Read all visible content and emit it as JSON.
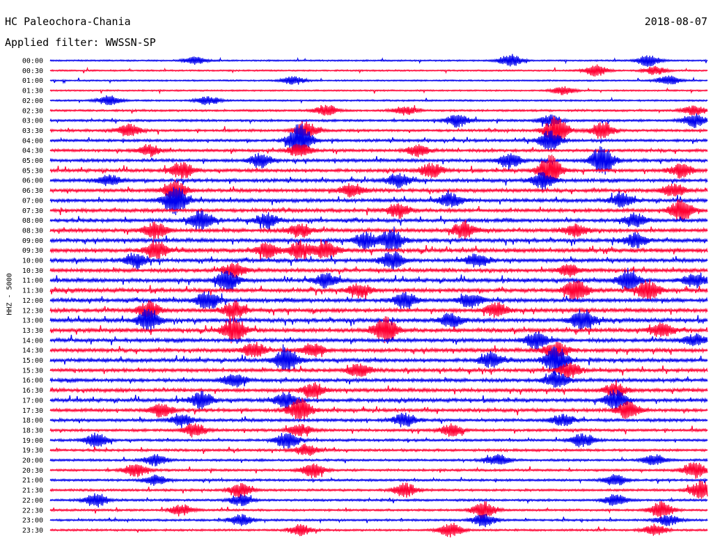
{
  "header": {
    "station": "HC Paleochora-Chania",
    "date": "2018-08-07",
    "filter": "Applied filter: WWSSN-SP",
    "channel": "HHZ - 5000"
  },
  "colors": {
    "trace_a": "#0000ee",
    "trace_b": "#ff0033"
  },
  "chart_data": {
    "type": "line",
    "title": "HC Paleochora-Chania",
    "subtitle": "Applied filter: WWSSN-SP",
    "ylabel": "HHZ - 5000",
    "rows": [
      {
        "time": "00:00",
        "color": "blue",
        "activity": 0.15,
        "events": [
          [
            0.22,
            5
          ],
          [
            0.7,
            9
          ],
          [
            0.91,
            8
          ]
        ]
      },
      {
        "time": "00:30",
        "color": "red",
        "activity": 0.15,
        "events": [
          [
            0.83,
            8
          ],
          [
            0.92,
            6
          ]
        ]
      },
      {
        "time": "01:00",
        "color": "blue",
        "activity": 0.15,
        "events": [
          [
            0.37,
            6
          ],
          [
            0.94,
            7
          ]
        ]
      },
      {
        "time": "01:30",
        "color": "red",
        "activity": 0.15,
        "events": [
          [
            0.78,
            6
          ]
        ]
      },
      {
        "time": "02:00",
        "color": "blue",
        "activity": 0.2,
        "events": [
          [
            0.09,
            7
          ],
          [
            0.24,
            6
          ]
        ]
      },
      {
        "time": "02:30",
        "color": "red",
        "activity": 0.3,
        "events": [
          [
            0.42,
            8
          ],
          [
            0.54,
            6
          ],
          [
            0.98,
            7
          ]
        ]
      },
      {
        "time": "03:00",
        "color": "blue",
        "activity": 0.35,
        "events": [
          [
            0.62,
            9
          ],
          [
            0.76,
            8
          ],
          [
            0.98,
            10
          ]
        ]
      },
      {
        "time": "03:30",
        "color": "red",
        "activity": 0.4,
        "events": [
          [
            0.12,
            9
          ],
          [
            0.39,
            12
          ],
          [
            0.77,
            22
          ],
          [
            0.84,
            12
          ]
        ]
      },
      {
        "time": "04:00",
        "color": "blue",
        "activity": 0.45,
        "events": [
          [
            0.38,
            24
          ],
          [
            0.76,
            14
          ]
        ]
      },
      {
        "time": "04:30",
        "color": "red",
        "activity": 0.5,
        "events": [
          [
            0.15,
            8
          ],
          [
            0.38,
            10
          ],
          [
            0.56,
            8
          ]
        ]
      },
      {
        "time": "05:00",
        "color": "blue",
        "activity": 0.55,
        "events": [
          [
            0.32,
            10
          ],
          [
            0.7,
            10
          ],
          [
            0.84,
            22
          ]
        ]
      },
      {
        "time": "05:30",
        "color": "red",
        "activity": 0.6,
        "events": [
          [
            0.2,
            12
          ],
          [
            0.58,
            10
          ],
          [
            0.76,
            22
          ],
          [
            0.96,
            10
          ]
        ]
      },
      {
        "time": "06:00",
        "color": "blue",
        "activity": 0.6,
        "events": [
          [
            0.09,
            8
          ],
          [
            0.53,
            10
          ],
          [
            0.75,
            12
          ]
        ]
      },
      {
        "time": "06:30",
        "color": "red",
        "activity": 0.65,
        "events": [
          [
            0.19,
            14
          ],
          [
            0.46,
            10
          ],
          [
            0.95,
            10
          ]
        ]
      },
      {
        "time": "07:00",
        "color": "blue",
        "activity": 0.65,
        "events": [
          [
            0.19,
            22
          ],
          [
            0.61,
            10
          ],
          [
            0.87,
            10
          ]
        ]
      },
      {
        "time": "07:30",
        "color": "red",
        "activity": 0.65,
        "events": [
          [
            0.53,
            10
          ],
          [
            0.96,
            16
          ]
        ]
      },
      {
        "time": "08:00",
        "color": "blue",
        "activity": 0.65,
        "events": [
          [
            0.23,
            14
          ],
          [
            0.33,
            10
          ],
          [
            0.89,
            10
          ]
        ]
      },
      {
        "time": "08:30",
        "color": "red",
        "activity": 0.7,
        "events": [
          [
            0.16,
            12
          ],
          [
            0.38,
            10
          ],
          [
            0.63,
            12
          ],
          [
            0.8,
            10
          ]
        ]
      },
      {
        "time": "09:00",
        "color": "blue",
        "activity": 0.7,
        "events": [
          [
            0.48,
            12
          ],
          [
            0.52,
            16
          ],
          [
            0.89,
            10
          ]
        ]
      },
      {
        "time": "09:30",
        "color": "red",
        "activity": 0.8,
        "events": [
          [
            0.16,
            12
          ],
          [
            0.33,
            10
          ],
          [
            0.38,
            12
          ],
          [
            0.42,
            12
          ]
        ]
      },
      {
        "time": "10:00",
        "color": "blue",
        "activity": 0.7,
        "events": [
          [
            0.13,
            10
          ],
          [
            0.52,
            12
          ],
          [
            0.65,
            10
          ]
        ]
      },
      {
        "time": "10:30",
        "color": "red",
        "activity": 0.7,
        "events": [
          [
            0.28,
            10
          ],
          [
            0.79,
            8
          ]
        ]
      },
      {
        "time": "11:00",
        "color": "blue",
        "activity": 0.75,
        "events": [
          [
            0.27,
            14
          ],
          [
            0.42,
            10
          ],
          [
            0.88,
            16
          ],
          [
            0.98,
            10
          ]
        ]
      },
      {
        "time": "11:30",
        "color": "red",
        "activity": 0.75,
        "events": [
          [
            0.47,
            10
          ],
          [
            0.8,
            16
          ],
          [
            0.91,
            14
          ]
        ]
      },
      {
        "time": "12:00",
        "color": "blue",
        "activity": 0.75,
        "events": [
          [
            0.24,
            14
          ],
          [
            0.54,
            12
          ],
          [
            0.64,
            10
          ]
        ]
      },
      {
        "time": "12:30",
        "color": "red",
        "activity": 0.75,
        "events": [
          [
            0.15,
            12
          ],
          [
            0.28,
            12
          ],
          [
            0.68,
            10
          ]
        ]
      },
      {
        "time": "13:00",
        "color": "blue",
        "activity": 0.75,
        "events": [
          [
            0.15,
            16
          ],
          [
            0.61,
            10
          ],
          [
            0.81,
            16
          ]
        ]
      },
      {
        "time": "13:30",
        "color": "red",
        "activity": 0.75,
        "events": [
          [
            0.28,
            18
          ],
          [
            0.51,
            20
          ],
          [
            0.93,
            10
          ]
        ]
      },
      {
        "time": "14:00",
        "color": "blue",
        "activity": 0.7,
        "events": [
          [
            0.74,
            12
          ],
          [
            0.98,
            8
          ]
        ]
      },
      {
        "time": "14:30",
        "color": "red",
        "activity": 0.7,
        "events": [
          [
            0.31,
            12
          ],
          [
            0.4,
            10
          ],
          [
            0.77,
            14
          ]
        ]
      },
      {
        "time": "15:00",
        "color": "blue",
        "activity": 0.7,
        "events": [
          [
            0.36,
            18
          ],
          [
            0.67,
            10
          ],
          [
            0.77,
            20
          ]
        ]
      },
      {
        "time": "15:30",
        "color": "red",
        "activity": 0.65,
        "events": [
          [
            0.47,
            10
          ],
          [
            0.79,
            10
          ]
        ]
      },
      {
        "time": "16:00",
        "color": "blue",
        "activity": 0.65,
        "events": [
          [
            0.28,
            10
          ],
          [
            0.77,
            12
          ]
        ]
      },
      {
        "time": "16:30",
        "color": "red",
        "activity": 0.65,
        "events": [
          [
            0.4,
            10
          ],
          [
            0.86,
            10
          ]
        ]
      },
      {
        "time": "17:00",
        "color": "blue",
        "activity": 0.65,
        "events": [
          [
            0.23,
            12
          ],
          [
            0.36,
            12
          ],
          [
            0.86,
            14
          ]
        ]
      },
      {
        "time": "17:30",
        "color": "red",
        "activity": 0.6,
        "events": [
          [
            0.17,
            10
          ],
          [
            0.38,
            16
          ],
          [
            0.88,
            12
          ]
        ]
      },
      {
        "time": "18:00",
        "color": "blue",
        "activity": 0.55,
        "events": [
          [
            0.2,
            8
          ],
          [
            0.54,
            10
          ],
          [
            0.78,
            8
          ]
        ]
      },
      {
        "time": "18:30",
        "color": "red",
        "activity": 0.45,
        "events": [
          [
            0.22,
            10
          ],
          [
            0.38,
            8
          ],
          [
            0.61,
            8
          ]
        ]
      },
      {
        "time": "19:00",
        "color": "blue",
        "activity": 0.4,
        "events": [
          [
            0.07,
            10
          ],
          [
            0.36,
            12
          ],
          [
            0.81,
            10
          ]
        ]
      },
      {
        "time": "19:30",
        "color": "red",
        "activity": 0.4,
        "events": [
          [
            0.39,
            8
          ]
        ]
      },
      {
        "time": "20:00",
        "color": "blue",
        "activity": 0.35,
        "events": [
          [
            0.16,
            8
          ],
          [
            0.68,
            8
          ],
          [
            0.92,
            8
          ]
        ]
      },
      {
        "time": "20:30",
        "color": "red",
        "activity": 0.35,
        "events": [
          [
            0.13,
            10
          ],
          [
            0.4,
            10
          ],
          [
            0.98,
            12
          ]
        ]
      },
      {
        "time": "21:00",
        "color": "blue",
        "activity": 0.35,
        "events": [
          [
            0.16,
            8
          ],
          [
            0.86,
            8
          ]
        ]
      },
      {
        "time": "21:30",
        "color": "red",
        "activity": 0.35,
        "events": [
          [
            0.29,
            10
          ],
          [
            0.54,
            10
          ],
          [
            0.99,
            14
          ]
        ]
      },
      {
        "time": "22:00",
        "color": "blue",
        "activity": 0.35,
        "events": [
          [
            0.07,
            10
          ],
          [
            0.29,
            8
          ],
          [
            0.86,
            8
          ]
        ]
      },
      {
        "time": "22:30",
        "color": "red",
        "activity": 0.3,
        "events": [
          [
            0.2,
            8
          ],
          [
            0.66,
            12
          ],
          [
            0.93,
            12
          ]
        ]
      },
      {
        "time": "23:00",
        "color": "blue",
        "activity": 0.3,
        "events": [
          [
            0.29,
            8
          ],
          [
            0.66,
            10
          ],
          [
            0.94,
            8
          ]
        ]
      },
      {
        "time": "23:30",
        "color": "red",
        "activity": 0.3,
        "events": [
          [
            0.38,
            8
          ],
          [
            0.61,
            10
          ],
          [
            0.92,
            8
          ]
        ]
      }
    ]
  }
}
